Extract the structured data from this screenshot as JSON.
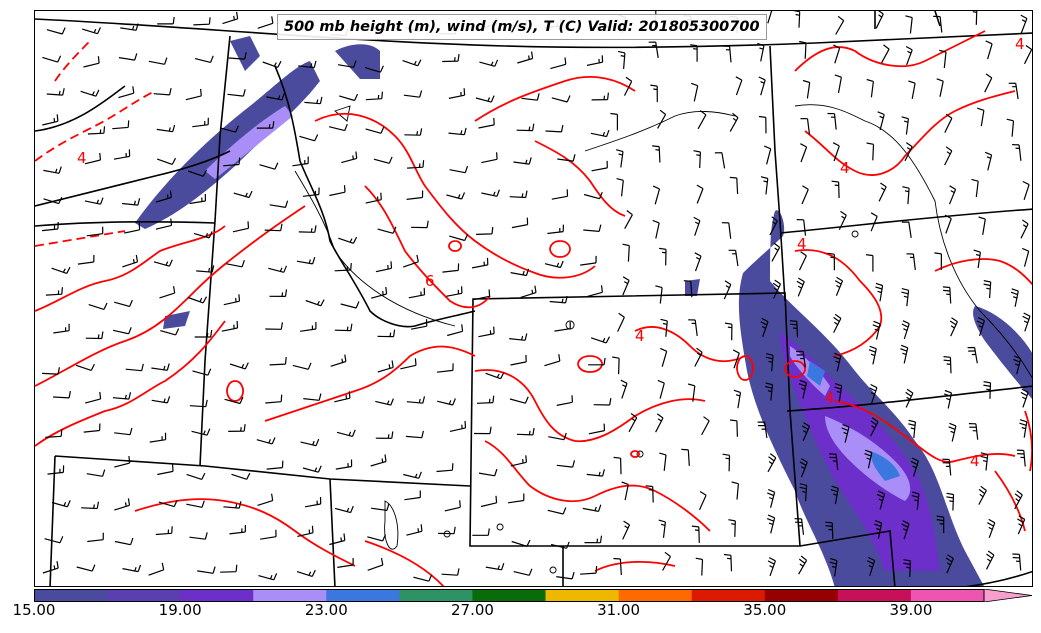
{
  "title": "500 mb height (m), wind (m/s), T (C) Valid: 201805300700",
  "contour_labels": [
    "4",
    "4",
    "4",
    "4",
    "6",
    "4",
    "4",
    "4"
  ],
  "colorbar": {
    "colors": [
      "#4b4b9e",
      "#5a3fb0",
      "#6d2fc9",
      "#a98ef7",
      "#3a78e0",
      "#2e9264",
      "#0a6b0a",
      "#eeb800",
      "#ff6a00",
      "#dc1a00",
      "#960000",
      "#c8105a",
      "#ef55b0"
    ],
    "extend_color": "#f7a0d0",
    "ticks": [
      "15.00",
      "19.00",
      "23.00",
      "27.00",
      "31.00",
      "35.00",
      "39.00"
    ]
  },
  "colors": {
    "temperature_contour": "#ff0000",
    "boundary": "#000000",
    "barb": "#000000"
  }
}
